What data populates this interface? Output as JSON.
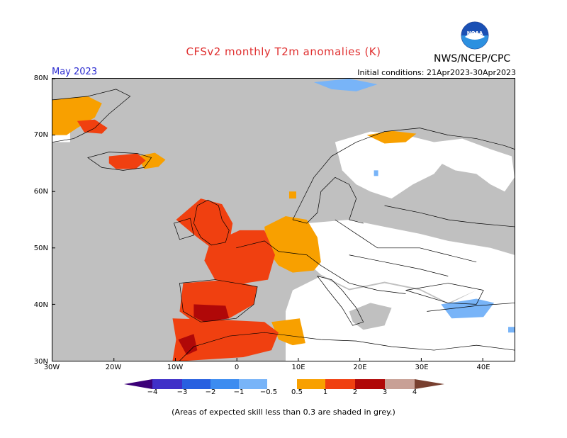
{
  "title": "CFSv2 monthly T2m anomalies (K)",
  "organization": "NWS/NCEP/CPC",
  "logo_text": "NOAA",
  "target_month": "May 2023",
  "initial_conditions": "Initial conditions: 21Apr2023-30Apr2023",
  "footnote": "(Areas of expected skill less than 0.3 are shaded in grey.)",
  "colors": {
    "title": "#e03030",
    "month": "#2a2ad0",
    "grey_low_skill": "#c0c0c0",
    "neutral": "#ffffff"
  },
  "map": {
    "lat_labels": [
      "80N",
      "70N",
      "60N",
      "50N",
      "40N",
      "30N"
    ],
    "lon_labels": [
      "30W",
      "20W",
      "10W",
      "0",
      "10E",
      "20E",
      "30E",
      "40E"
    ]
  },
  "colorbar": {
    "labels": [
      "−4",
      "−3",
      "−2",
      "−1",
      "−0.5",
      "0.5",
      "1",
      "2",
      "3",
      "4"
    ],
    "bins": [
      {
        "range": "< -4",
        "color": "#3c0078"
      },
      {
        "range": "-4 to -3",
        "color": "#4030c8"
      },
      {
        "range": "-3 to -2",
        "color": "#2860e0"
      },
      {
        "range": "-2 to -1",
        "color": "#3c8cf0"
      },
      {
        "range": "-1 to -0.5",
        "color": "#78b4f8"
      },
      {
        "range": "-0.5 to 0.5",
        "color": "#ffffff"
      },
      {
        "range": "0.5 to 1",
        "color": "#f8a000"
      },
      {
        "range": "1 to 2",
        "color": "#f04010"
      },
      {
        "range": "2 to 3",
        "color": "#b00808"
      },
      {
        "range": "3 to 4",
        "color": "#c8a096"
      },
      {
        "range": "> 4",
        "color": "#784030"
      }
    ]
  }
}
